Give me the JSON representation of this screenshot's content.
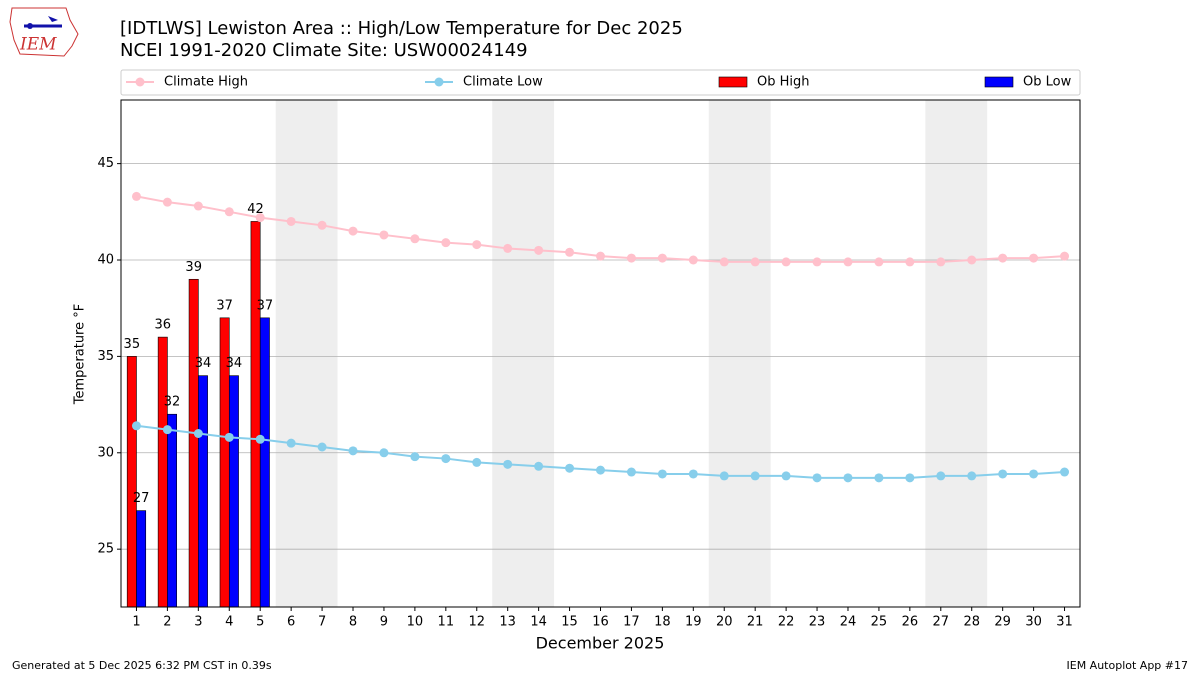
{
  "chart_data": {
    "type": "bar",
    "logo_text": "IEM",
    "title": "[IDTLWS] Lewiston Area :: High/Low Temperature for Dec 2025",
    "subtitle": "NCEI 1991-2020 Climate Site: USW00024149",
    "x_label": "December 2025",
    "y_label": "Temperature °F",
    "footer_left": "Generated at 5 Dec 2025 6:32 PM CST in 0.39s",
    "footer_right": "IEM Autoplot App #17",
    "x": [
      1,
      2,
      3,
      4,
      5,
      6,
      7,
      8,
      9,
      10,
      11,
      12,
      13,
      14,
      15,
      16,
      17,
      18,
      19,
      20,
      21,
      22,
      23,
      24,
      25,
      26,
      27,
      28,
      29,
      30,
      31
    ],
    "xlim": [
      0.5,
      31.5
    ],
    "xticks": [
      1,
      2,
      3,
      4,
      5,
      6,
      7,
      8,
      9,
      10,
      11,
      12,
      13,
      14,
      15,
      16,
      17,
      18,
      19,
      20,
      21,
      22,
      23,
      24,
      25,
      26,
      27,
      28,
      29,
      30,
      31
    ],
    "ylim": [
      22,
      48.3
    ],
    "yticks": [
      25,
      30,
      35,
      40,
      45
    ],
    "grid": true,
    "legend": "top",
    "shaded_spans": [
      [
        5.5,
        7.5
      ],
      [
        12.5,
        14.5
      ],
      [
        19.5,
        21.5
      ],
      [
        26.5,
        28.5
      ]
    ],
    "shade_color": "#eeeeee",
    "series": [
      {
        "name": "Climate High",
        "type": "line",
        "color": "pink",
        "values": [
          43.3,
          43.0,
          42.8,
          42.5,
          42.2,
          42.0,
          41.8,
          41.5,
          41.3,
          41.1,
          40.9,
          40.8,
          40.6,
          40.5,
          40.4,
          40.2,
          40.1,
          40.1,
          40.0,
          39.9,
          39.9,
          39.9,
          39.9,
          39.9,
          39.9,
          39.9,
          39.9,
          40.0,
          40.1,
          40.1,
          40.2
        ]
      },
      {
        "name": "Climate Low",
        "type": "line",
        "color": "skyblue",
        "values": [
          31.4,
          31.2,
          31.0,
          30.8,
          30.7,
          30.5,
          30.3,
          30.1,
          30.0,
          29.8,
          29.7,
          29.5,
          29.4,
          29.3,
          29.2,
          29.1,
          29.0,
          28.9,
          28.9,
          28.8,
          28.8,
          28.8,
          28.7,
          28.7,
          28.7,
          28.7,
          28.8,
          28.8,
          28.9,
          28.9,
          29.0
        ]
      },
      {
        "name": "Ob High",
        "type": "bar",
        "color": "#ff0000",
        "values": [
          35,
          36,
          39,
          37,
          42,
          null,
          null,
          null,
          null,
          null,
          null,
          null,
          null,
          null,
          null,
          null,
          null,
          null,
          null,
          null,
          null,
          null,
          null,
          null,
          null,
          null,
          null,
          null,
          null,
          null,
          null
        ]
      },
      {
        "name": "Ob Low",
        "type": "bar",
        "color": "#0000ff",
        "values": [
          27,
          32,
          34,
          34,
          37,
          null,
          null,
          null,
          null,
          null,
          null,
          null,
          null,
          null,
          null,
          null,
          null,
          null,
          null,
          null,
          null,
          null,
          null,
          null,
          null,
          null,
          null,
          null,
          null,
          null,
          null
        ]
      }
    ]
  }
}
